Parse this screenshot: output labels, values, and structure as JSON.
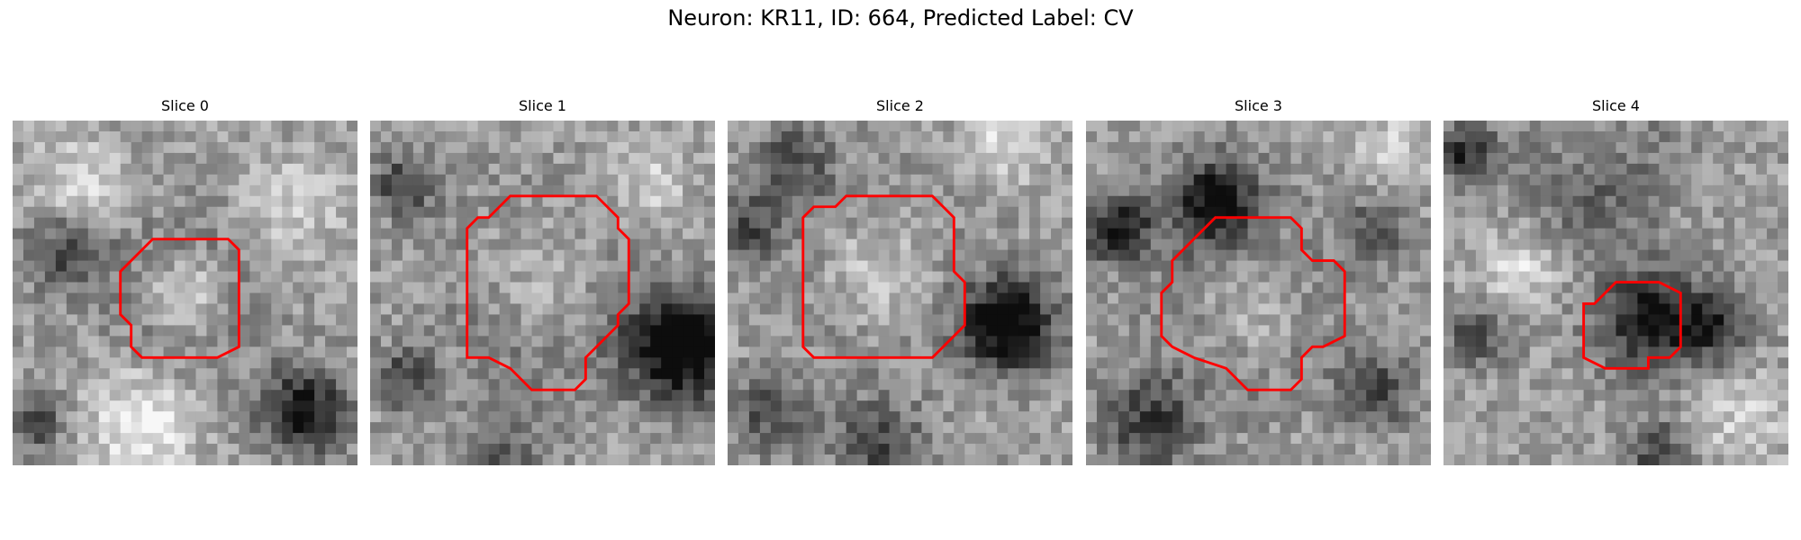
{
  "figure": {
    "title": "Neuron: KR11, ID: 664, Predicted Label: CV"
  },
  "panels": [
    {
      "title": "Slice 0",
      "contour_color": "#ff0000",
      "outline": [
        [
          6.5,
          5.5
        ],
        [
          10.0,
          5.5
        ],
        [
          10.5,
          6.0
        ],
        [
          10.5,
          10.5
        ],
        [
          9.5,
          11.0
        ],
        [
          6.0,
          11.0
        ],
        [
          5.5,
          10.5
        ],
        [
          5.5,
          9.5
        ],
        [
          5.0,
          9.0
        ],
        [
          5.0,
          7.0
        ],
        [
          5.5,
          6.5
        ]
      ]
    },
    {
      "title": "Slice 1",
      "contour_color": "#ff0000",
      "outline": [
        [
          6.5,
          3.5
        ],
        [
          10.5,
          3.5
        ],
        [
          11.5,
          4.5
        ],
        [
          11.5,
          5.0
        ],
        [
          12.0,
          5.5
        ],
        [
          12.0,
          8.5
        ],
        [
          11.5,
          9.0
        ],
        [
          11.5,
          9.5
        ],
        [
          11.0,
          10.0
        ],
        [
          10.5,
          10.5
        ],
        [
          10.0,
          11.0
        ],
        [
          10.0,
          12.0
        ],
        [
          9.5,
          12.5
        ],
        [
          7.5,
          12.5
        ],
        [
          6.5,
          11.5
        ],
        [
          5.5,
          11.0
        ],
        [
          4.5,
          11.0
        ],
        [
          4.5,
          5.0
        ],
        [
          5.0,
          4.5
        ],
        [
          5.5,
          4.5
        ]
      ]
    },
    {
      "title": "Slice 2",
      "contour_color": "#ff0000",
      "outline": [
        [
          5.5,
          3.5
        ],
        [
          9.5,
          3.5
        ],
        [
          10.5,
          4.5
        ],
        [
          10.5,
          7.0
        ],
        [
          11.0,
          7.5
        ],
        [
          11.0,
          9.5
        ],
        [
          10.0,
          10.5
        ],
        [
          9.5,
          11.0
        ],
        [
          4.0,
          11.0
        ],
        [
          3.5,
          10.5
        ],
        [
          3.5,
          4.5
        ],
        [
          4.0,
          4.0
        ],
        [
          5.0,
          4.0
        ]
      ]
    },
    {
      "title": "Slice 3",
      "contour_color": "#ff0000",
      "outline": [
        [
          6.0,
          4.5
        ],
        [
          9.5,
          4.5
        ],
        [
          10.0,
          5.0
        ],
        [
          10.0,
          6.0
        ],
        [
          10.5,
          6.5
        ],
        [
          11.5,
          6.5
        ],
        [
          12.0,
          7.0
        ],
        [
          12.0,
          10.0
        ],
        [
          11.0,
          10.5
        ],
        [
          10.5,
          10.5
        ],
        [
          10.0,
          11.0
        ],
        [
          10.0,
          12.0
        ],
        [
          9.5,
          12.5
        ],
        [
          7.5,
          12.5
        ],
        [
          6.5,
          11.5
        ],
        [
          5.0,
          11.0
        ],
        [
          4.0,
          10.5
        ],
        [
          3.5,
          10.0
        ],
        [
          3.5,
          8.0
        ],
        [
          4.0,
          7.5
        ],
        [
          4.0,
          6.5
        ],
        [
          5.0,
          5.5
        ]
      ]
    },
    {
      "title": "Slice 4",
      "contour_color": "#ff0000",
      "outline": [
        [
          8.0,
          7.5
        ],
        [
          10.0,
          7.5
        ],
        [
          11.0,
          8.0
        ],
        [
          11.0,
          10.5
        ],
        [
          10.5,
          11.0
        ],
        [
          9.5,
          11.0
        ],
        [
          9.5,
          11.5
        ],
        [
          7.5,
          11.5
        ],
        [
          6.5,
          11.0
        ],
        [
          6.5,
          8.5
        ],
        [
          7.0,
          8.5
        ],
        [
          7.5,
          8.0
        ]
      ]
    }
  ]
}
